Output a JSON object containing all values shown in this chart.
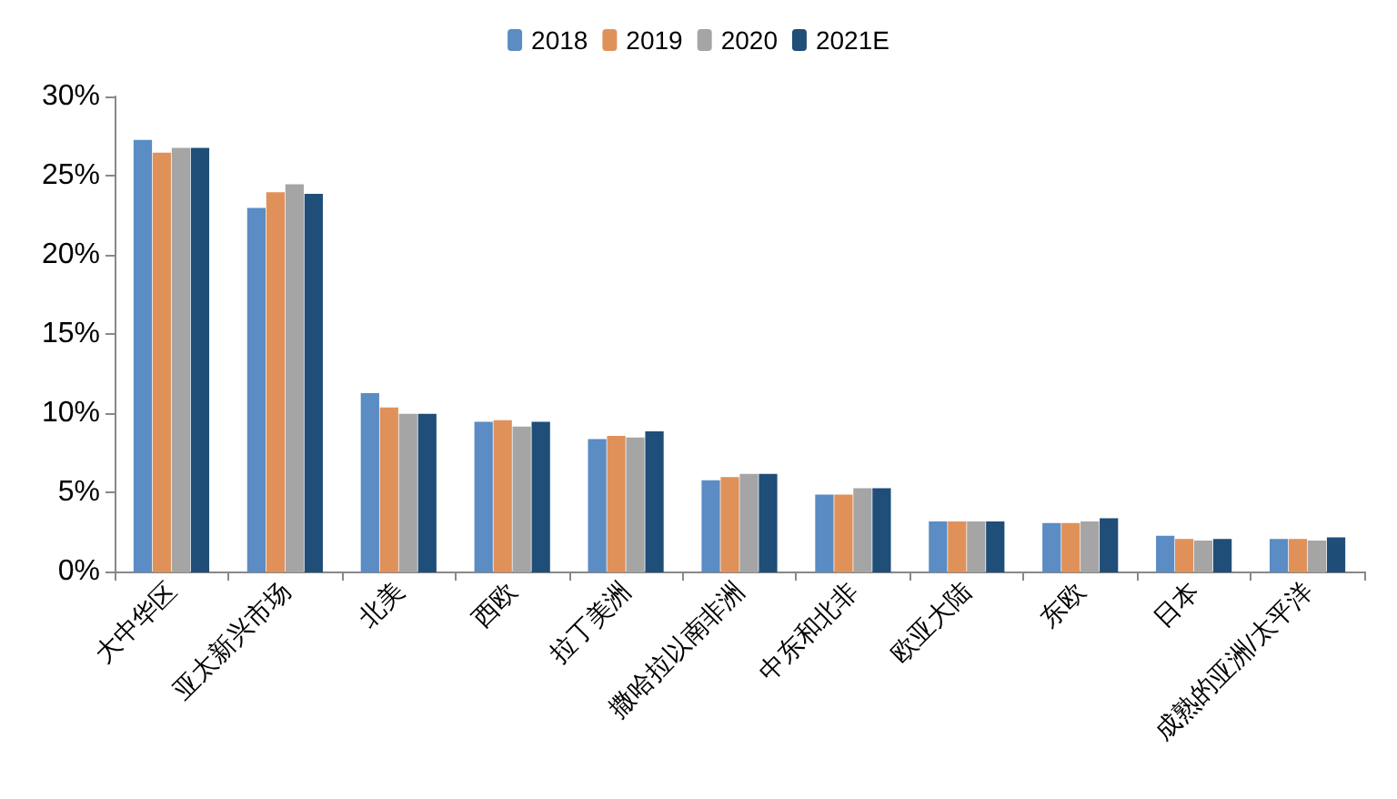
{
  "chart_data": {
    "type": "bar",
    "categories": [
      "大中华区",
      "亚太新兴市场",
      "北美",
      "西欧",
      "拉丁美洲",
      "撒哈拉以南非洲",
      "中东和北非",
      "欧亚大陆",
      "东欧",
      "日本",
      "成熟的亚洲/太平洋"
    ],
    "series": [
      {
        "name": "2018",
        "color": "#5b8cc4",
        "values": [
          27.2,
          22.9,
          11.2,
          9.4,
          8.3,
          5.7,
          4.8,
          3.1,
          3.0,
          2.2,
          2.0
        ]
      },
      {
        "name": "2019",
        "color": "#e0915a",
        "values": [
          26.4,
          23.9,
          10.3,
          9.5,
          8.5,
          5.9,
          4.8,
          3.1,
          3.0,
          2.0,
          2.0
        ]
      },
      {
        "name": "2020",
        "color": "#a5a5a5",
        "values": [
          26.7,
          24.4,
          9.9,
          9.1,
          8.4,
          6.1,
          5.2,
          3.1,
          3.1,
          1.9,
          1.9
        ]
      },
      {
        "name": "2021E",
        "color": "#1f4e79",
        "values": [
          26.7,
          23.8,
          9.9,
          9.4,
          8.8,
          6.1,
          5.2,
          3.1,
          3.3,
          2.0,
          2.1
        ]
      }
    ],
    "ylim": [
      0,
      30
    ],
    "yticks": [
      {
        "value": 0,
        "label": "0%"
      },
      {
        "value": 5,
        "label": "5%"
      },
      {
        "value": 10,
        "label": "10%"
      },
      {
        "value": 15,
        "label": "15%"
      },
      {
        "value": 20,
        "label": "20%"
      },
      {
        "value": 25,
        "label": "25%"
      },
      {
        "value": 30,
        "label": "30%"
      }
    ],
    "grid": false,
    "legend": "top"
  }
}
